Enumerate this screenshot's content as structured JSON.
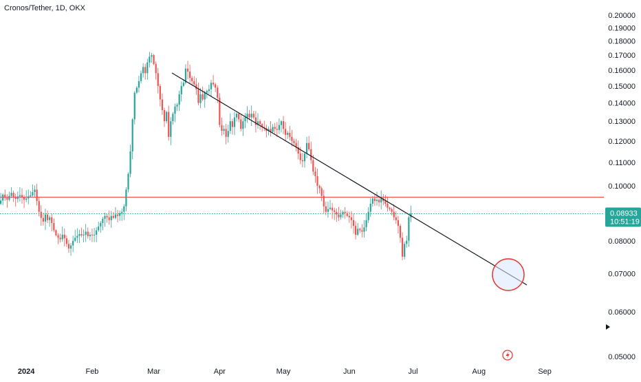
{
  "header": {
    "title": "Cronos/Tether, 1D, OKX"
  },
  "price_tag": {
    "price": "0.08933",
    "countdown": "10:51:19"
  },
  "colors": {
    "up": "#26a69a",
    "down": "#ef5350",
    "trendline": "#131722",
    "resistance": "#ef5350",
    "current_price_line": "#26a69a",
    "highlight_circle": "#e53935",
    "highlight_fill": "#dbe8ff"
  },
  "icons": {
    "flash": "lightning-bolt-icon",
    "arrow": "triangle-right-icon"
  },
  "chart_data": {
    "type": "candlestick",
    "symbol": "Cronos/Tether",
    "interval": "1D",
    "exchange": "OKX",
    "y_scale": "log",
    "ylim": [
      0.05,
      0.2
    ],
    "y_ticks": [
      "0.20000",
      "0.19000",
      "0.18000",
      "0.17000",
      "0.16000",
      "0.15000",
      "0.14000",
      "0.13000",
      "0.12000",
      "0.11000",
      "0.10000",
      "0.09000",
      "0.08000",
      "0.07000",
      "0.06000",
      "0.05000"
    ],
    "x_ticks": [
      {
        "label": "2024",
        "date": "2024-01-01",
        "bold": true
      },
      {
        "label": "Feb",
        "date": "2024-02-01"
      },
      {
        "label": "Mar",
        "date": "2024-03-01"
      },
      {
        "label": "Apr",
        "date": "2024-04-01"
      },
      {
        "label": "May",
        "date": "2024-05-01"
      },
      {
        "label": "Jun",
        "date": "2024-06-01"
      },
      {
        "label": "Jul",
        "date": "2024-07-01"
      },
      {
        "label": "Aug",
        "date": "2024-08-01"
      },
      {
        "label": "Sep",
        "date": "2024-09-01"
      }
    ],
    "start_date": "2023-12-19",
    "close": [
      0.093,
      0.0942,
      0.0965,
      0.0952,
      0.0945,
      0.096,
      0.0972,
      0.0955,
      0.0948,
      0.0958,
      0.0963,
      0.0955,
      0.0945,
      0.095,
      0.0958,
      0.0962,
      0.0975,
      0.0985,
      0.094,
      0.09,
      0.0878,
      0.0865,
      0.089,
      0.087,
      0.088,
      0.086,
      0.0835,
      0.0818,
      0.081,
      0.0805,
      0.082,
      0.0808,
      0.079,
      0.0775,
      0.0785,
      0.08,
      0.081,
      0.0816,
      0.0822,
      0.0818,
      0.082,
      0.083,
      0.0815,
      0.082,
      0.0818,
      0.082,
      0.0835,
      0.0848,
      0.086,
      0.0875,
      0.0885,
      0.088,
      0.087,
      0.0885,
      0.0878,
      0.089,
      0.0885,
      0.0895,
      0.09,
      0.092,
      0.0985,
      0.105,
      0.115,
      0.131,
      0.146,
      0.149,
      0.153,
      0.158,
      0.162,
      0.158,
      0.165,
      0.169,
      0.17,
      0.164,
      0.158,
      0.15,
      0.142,
      0.136,
      0.13,
      0.135,
      0.122,
      0.13,
      0.134,
      0.138,
      0.139,
      0.145,
      0.15,
      0.152,
      0.161,
      0.159,
      0.155,
      0.153,
      0.151,
      0.148,
      0.14,
      0.145,
      0.142,
      0.146,
      0.147,
      0.148,
      0.152,
      0.151,
      0.149,
      0.143,
      0.128,
      0.125,
      0.126,
      0.122,
      0.125,
      0.13,
      0.127,
      0.132,
      0.134,
      0.131,
      0.126,
      0.13,
      0.132,
      0.134,
      0.132,
      0.134,
      0.132,
      0.128,
      0.13,
      0.1285,
      0.127,
      0.1265,
      0.125,
      0.126,
      0.1245,
      0.127,
      0.126,
      0.1255,
      0.128,
      0.13,
      0.126,
      0.123,
      0.124,
      0.122,
      0.12,
      0.119,
      0.117,
      0.114,
      0.111,
      0.1105,
      0.114,
      0.119,
      0.116,
      0.111,
      0.106,
      0.104,
      0.1,
      0.099,
      0.096,
      0.092,
      0.09,
      0.091,
      0.0915,
      0.0905,
      0.09,
      0.089,
      0.088,
      0.089,
      0.09,
      0.0895,
      0.0885,
      0.088,
      0.087,
      0.085,
      0.082,
      0.084,
      0.0835,
      0.083,
      0.0845,
      0.087,
      0.09,
      0.093,
      0.095,
      0.094,
      0.0945,
      0.0935,
      0.095,
      0.094,
      0.093,
      0.0915,
      0.091,
      0.09,
      0.088,
      0.087,
      0.085,
      0.081,
      0.075,
      0.079,
      0.08,
      0.088,
      0.0893
    ]
  }
}
